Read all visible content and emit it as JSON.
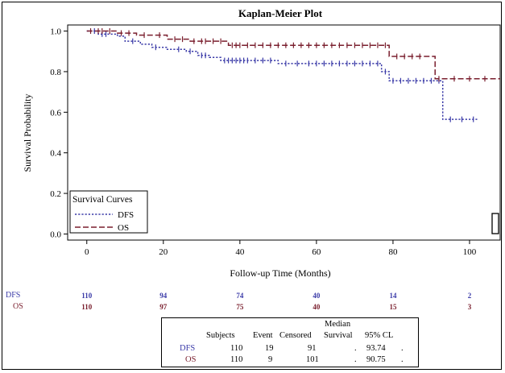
{
  "chart_data": {
    "type": "line",
    "title": "Kaplan-Meier Plot",
    "xlabel": "Follow-up Time (Months)",
    "ylabel": "Survival Probability",
    "xlim": [
      -5,
      108
    ],
    "ylim": [
      -0.03,
      1.03
    ],
    "xticks": [
      0,
      20,
      40,
      60,
      80,
      100
    ],
    "yticks": [
      0.0,
      0.2,
      0.4,
      0.6,
      0.8,
      1.0
    ],
    "ytick_labels": [
      "0.0",
      "0.2",
      "0.4",
      "0.6",
      "0.8",
      "1.0"
    ],
    "step": true,
    "legend": {
      "title": "Survival Curves",
      "placement": "bottom-left",
      "entries": [
        "DFS",
        "OS"
      ]
    },
    "series": [
      {
        "name": "DFS",
        "color": "#3b3ba8",
        "dash": "dotted",
        "x": [
          0,
          3,
          8,
          10,
          14,
          17,
          21,
          26,
          29,
          32,
          35,
          43,
          50,
          77,
          79,
          93
        ],
        "y": [
          1.0,
          0.985,
          0.975,
          0.95,
          0.935,
          0.92,
          0.91,
          0.9,
          0.88,
          0.87,
          0.855,
          0.855,
          0.84,
          0.8,
          0.755,
          0.565
        ],
        "end_x": 102,
        "censor_x": [
          2,
          4,
          5,
          12,
          18,
          24,
          27,
          30,
          31,
          36,
          37,
          38,
          39,
          40,
          41,
          42,
          44,
          46,
          48,
          52,
          55,
          58,
          60,
          62,
          64,
          66,
          68,
          70,
          72,
          74,
          76,
          78,
          80,
          82,
          84,
          86,
          88,
          90,
          92,
          95,
          98,
          101
        ]
      },
      {
        "name": "OS",
        "color": "#7a1f2e",
        "dash": "dashed",
        "x": [
          0,
          8,
          13,
          21,
          27,
          37,
          79,
          91
        ],
        "y": [
          1.0,
          0.99,
          0.98,
          0.96,
          0.95,
          0.93,
          0.875,
          0.765
        ],
        "end_x": 108,
        "censor_x": [
          1,
          3,
          4,
          6,
          9,
          11,
          15,
          19,
          23,
          25,
          28,
          30,
          31,
          33,
          35,
          38,
          39,
          40,
          42,
          44,
          46,
          48,
          50,
          52,
          54,
          56,
          58,
          60,
          62,
          64,
          66,
          68,
          70,
          72,
          74,
          76,
          78,
          81,
          83,
          85,
          87,
          92,
          96,
          100,
          104
        ]
      }
    ],
    "at_risk": {
      "times": [
        0,
        20,
        40,
        60,
        80,
        100
      ],
      "rows": [
        {
          "label": "DFS",
          "color": "#3b3ba8",
          "values": [
            "110",
            "94",
            "74",
            "40",
            "14",
            "2"
          ]
        },
        {
          "label": "OS",
          "color": "#7a1f2e",
          "values": [
            "110",
            "97",
            "75",
            "40",
            "15",
            "3"
          ]
        }
      ]
    },
    "summary_table": {
      "header_top": "Median",
      "headers": [
        "Subjects",
        "Event",
        "Censored",
        "Survival",
        "95% CL"
      ],
      "rows": [
        {
          "label": "DFS",
          "color": "#3b3ba8",
          "subjects": "110",
          "event": "19",
          "censored": "91",
          "median": ".",
          "cl_low": "93.74",
          "cl_high": "."
        },
        {
          "label": "OS",
          "color": "#7a1f2e",
          "subjects": "110",
          "event": "9",
          "censored": "101",
          "median": ".",
          "cl_low": "90.75",
          "cl_high": "."
        }
      ]
    }
  }
}
